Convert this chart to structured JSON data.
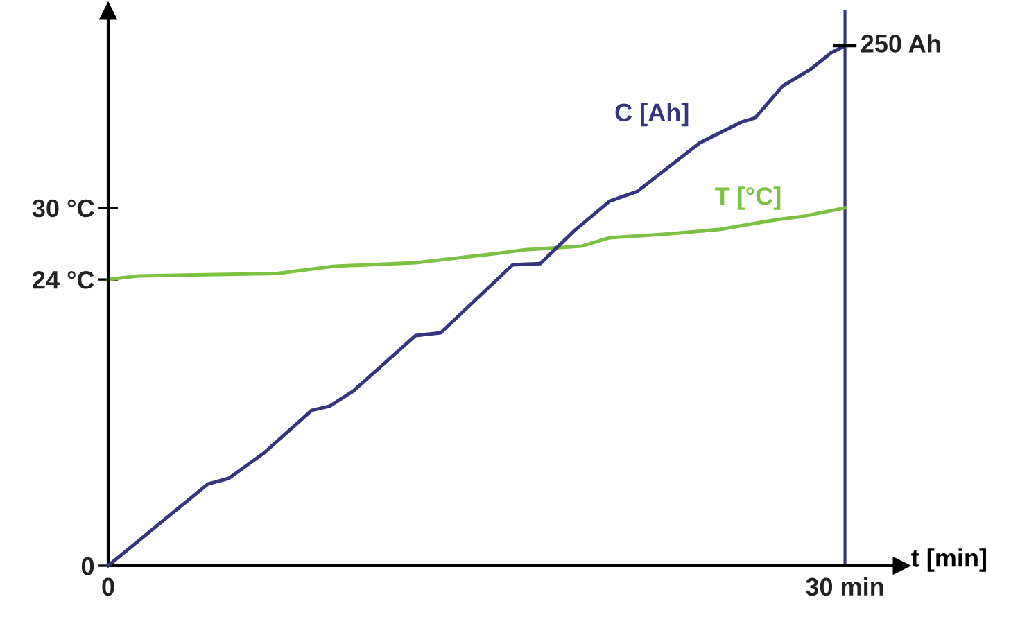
{
  "chart_data": {
    "type": "line",
    "xlabel": "t [min]",
    "xlim": [
      0,
      32.3
    ],
    "xticks": [
      0,
      {
        "value": 30,
        "label": "30 min"
      }
    ],
    "ylim": [
      0,
      46.5
    ],
    "yticks": [
      0,
      {
        "value": 24,
        "label": "24 °C"
      },
      {
        "value": 30,
        "label": "30 °C"
      }
    ],
    "y2lim": [
      0,
      266.7
    ],
    "ref_lines": [
      {
        "axis": "x",
        "value": 30,
        "color": "#35357f"
      }
    ],
    "grid": false,
    "legend": false,
    "marker": "none",
    "line_style": "solid",
    "series": [
      {
        "name": "C [Ah]",
        "color": "#35357f",
        "axis": "y2",
        "x": [
          0,
          4.06,
          4.91,
          6.32,
          8.29,
          9.02,
          9.98,
          12.52,
          13.54,
          16.47,
          17.6,
          19.0,
          20.42,
          21.55,
          24.08,
          25.78,
          26.34,
          27.47,
          28.6,
          29.44,
          30
        ],
        "values": [
          0,
          39.3,
          42,
          54,
          74.7,
          76.7,
          84,
          110.7,
          112,
          144.7,
          145.3,
          161.3,
          175.3,
          180,
          203.3,
          213.3,
          215.3,
          230.7,
          238.7,
          246.7,
          250
        ],
        "value_labels": [
          null,
          null,
          null,
          null,
          null,
          null,
          null,
          null,
          null,
          null,
          null,
          null,
          null,
          null,
          null,
          null,
          null,
          null,
          null,
          null,
          "250 Ah"
        ]
      },
      {
        "name": "T [°C]",
        "color": "#7cc242",
        "x": [
          0,
          1.24,
          6.88,
          9.14,
          12.52,
          15.9,
          17.03,
          19.29,
          20.42,
          22.67,
          24.93,
          27.19,
          28.31,
          30
        ],
        "values": [
          24.0,
          24.3,
          24.5,
          25.1,
          25.4,
          26.2,
          26.5,
          26.8,
          27.5,
          27.8,
          28.2,
          29.0,
          29.3,
          30.0
        ]
      }
    ]
  }
}
